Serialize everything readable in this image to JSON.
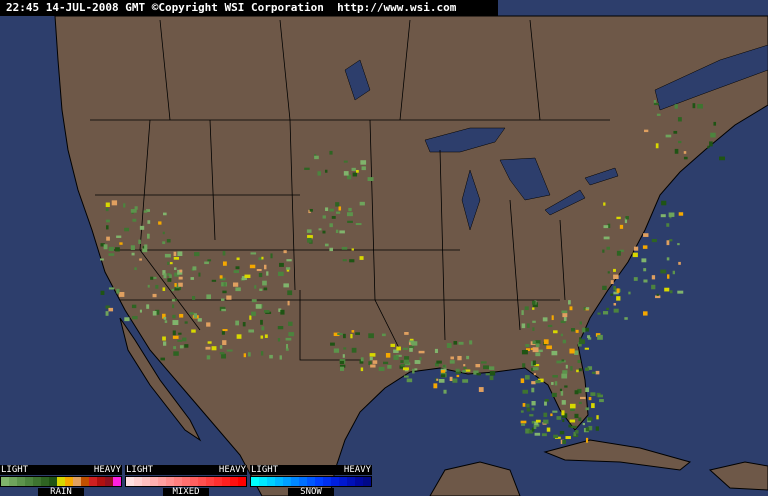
{
  "header": {
    "text": "22:45 14-JUL-2008 GMT ©Copyright WSI Corporation  http://www.wsi.com"
  },
  "colors": {
    "ocean": "#2d3e6c",
    "land": "#6e5848",
    "border": "#000000"
  },
  "legend": [
    {
      "name": "RAIN",
      "light": "LIGHT",
      "heavy": "HEAVY",
      "colors": [
        "#80b46c",
        "#6ea45c",
        "#5c944c",
        "#4c843e",
        "#3e7430",
        "#2e6422",
        "#1f5414",
        "#d8d800",
        "#f5a800",
        "#e0a060",
        "#c05000",
        "#d02020",
        "#b01010",
        "#901020",
        "#ff20e0"
      ]
    },
    {
      "name": "MIXED",
      "light": "LIGHT",
      "heavy": "HEAVY",
      "colors": [
        "#ffe0e0",
        "#ffd0d0",
        "#ffc0c0",
        "#ffb0b0",
        "#ffa0a0",
        "#ff9090",
        "#ff8080",
        "#ff7070",
        "#ff6060",
        "#ff5050",
        "#ff4040",
        "#ff3030",
        "#ff2020",
        "#ff1010",
        "#ff0000"
      ]
    },
    {
      "name": "SNOW",
      "light": "LIGHT",
      "heavy": "HEAVY",
      "colors": [
        "#00ffff",
        "#00e8ff",
        "#00d0ff",
        "#00b8ff",
        "#00a0ff",
        "#0088ff",
        "#0070ff",
        "#0058ff",
        "#0040ff",
        "#0030f0",
        "#0020e0",
        "#0018d0",
        "#0010b8",
        "#0008a0",
        "#000888"
      ]
    }
  ]
}
